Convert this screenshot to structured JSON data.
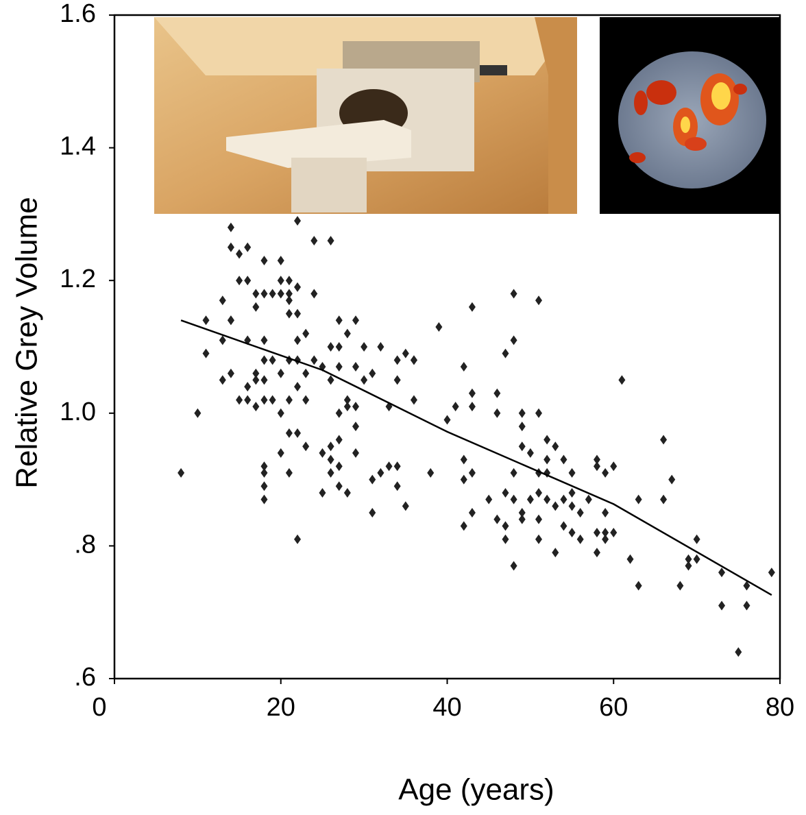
{
  "chart_data": {
    "type": "scatter",
    "x_label": "Age (years)",
    "y_label": "Relative Grey Volume",
    "xlim": [
      0,
      80
    ],
    "xticks": [
      0,
      20,
      40,
      60,
      80
    ],
    "ylim": [
      0.6,
      1.6
    ],
    "yticks": [
      {
        "value": 0.6,
        "label": ".6"
      },
      {
        "value": 0.8,
        "label": ".8"
      },
      {
        "value": 1.0,
        "label": "1.0"
      },
      1.2,
      1.4,
      1.6
    ],
    "series": [
      {
        "type": "scatter",
        "color": "#222222",
        "x": [
          8,
          10,
          11,
          11,
          13,
          13,
          13,
          14,
          14,
          14,
          14,
          14,
          15,
          15,
          15,
          16,
          16,
          16,
          16,
          16,
          17,
          17,
          17,
          17,
          17,
          18,
          18,
          18,
          18,
          18,
          18,
          18,
          18,
          18,
          18,
          19,
          19,
          19,
          20,
          20,
          20,
          20,
          20,
          20,
          21,
          21,
          21,
          21,
          21,
          21,
          21,
          21,
          22,
          22,
          22,
          22,
          22,
          22,
          22,
          22,
          23,
          23,
          23,
          23,
          24,
          24,
          24,
          25,
          25,
          25,
          26,
          26,
          26,
          26,
          26,
          26,
          27,
          27,
          27,
          27,
          27,
          27,
          27,
          28,
          28,
          28,
          28,
          29,
          29,
          29,
          29,
          29,
          30,
          30,
          31,
          31,
          31,
          32,
          32,
          33,
          33,
          34,
          34,
          34,
          34,
          35,
          35,
          36,
          36,
          36,
          38,
          39,
          40,
          41,
          42,
          42,
          42,
          42,
          43,
          43,
          43,
          43,
          43,
          45,
          46,
          46,
          46,
          47,
          47,
          47,
          47,
          48,
          48,
          48,
          48,
          48,
          49,
          49,
          49,
          49,
          49,
          50,
          50,
          51,
          51,
          51,
          51,
          51,
          51,
          52,
          52,
          52,
          52,
          53,
          53,
          53,
          54,
          54,
          54,
          55,
          55,
          55,
          55,
          56,
          56,
          57,
          58,
          58,
          58,
          58,
          59,
          59,
          59,
          59,
          60,
          60,
          61,
          62,
          63,
          63,
          66,
          66,
          67,
          68,
          69,
          69,
          70,
          70,
          73,
          73,
          76,
          76,
          75,
          79
        ],
        "values": [
          0.91,
          1.0,
          1.09,
          1.14,
          1.17,
          1.05,
          1.11,
          1.28,
          1.25,
          1.14,
          1.14,
          1.06,
          1.2,
          1.24,
          1.02,
          1.25,
          1.2,
          1.11,
          1.04,
          1.02,
          1.18,
          1.16,
          1.06,
          1.01,
          1.05,
          1.23,
          1.18,
          1.11,
          1.08,
          1.05,
          1.02,
          0.92,
          0.91,
          0.89,
          0.87,
          1.18,
          1.08,
          1.02,
          1.23,
          1.2,
          1.18,
          1.06,
          1.0,
          0.94,
          1.2,
          1.18,
          1.17,
          1.15,
          1.08,
          1.02,
          0.97,
          0.91,
          1.29,
          1.19,
          1.15,
          1.11,
          1.08,
          1.04,
          0.97,
          0.81,
          1.12,
          1.06,
          1.02,
          0.95,
          1.26,
          1.18,
          1.08,
          1.07,
          0.94,
          0.88,
          1.26,
          1.1,
          1.05,
          0.95,
          0.93,
          0.91,
          1.14,
          1.1,
          1.07,
          1.0,
          0.96,
          0.92,
          0.89,
          1.12,
          1.02,
          1.01,
          0.88,
          1.14,
          1.07,
          1.01,
          0.98,
          0.94,
          1.1,
          1.05,
          1.06,
          0.9,
          0.85,
          1.1,
          0.91,
          1.01,
          0.92,
          1.08,
          1.05,
          0.92,
          0.89,
          1.09,
          0.86,
          1.08,
          1.08,
          1.02,
          0.91,
          1.13,
          0.99,
          1.01,
          1.07,
          0.93,
          0.9,
          0.83,
          1.16,
          1.03,
          1.01,
          0.91,
          0.85,
          0.87,
          1.03,
          1.0,
          0.84,
          1.09,
          0.88,
          0.83,
          0.81,
          1.18,
          1.11,
          0.91,
          0.87,
          0.77,
          1.0,
          0.98,
          0.95,
          0.85,
          0.84,
          0.94,
          0.87,
          1.17,
          1.0,
          0.91,
          0.88,
          0.84,
          0.81,
          0.96,
          0.93,
          0.91,
          0.87,
          0.95,
          0.86,
          0.79,
          0.93,
          0.87,
          0.83,
          0.91,
          0.88,
          0.86,
          0.82,
          0.85,
          0.81,
          0.87,
          0.93,
          0.92,
          0.82,
          0.79,
          0.91,
          0.85,
          0.82,
          0.81,
          0.92,
          0.82,
          1.05,
          0.78,
          0.87,
          0.74,
          0.96,
          0.87,
          0.9,
          0.74,
          0.78,
          0.77,
          0.81,
          0.78,
          0.76,
          0.71,
          0.74,
          0.71,
          0.64,
          0.76
        ]
      },
      {
        "type": "line",
        "color": "#000000",
        "x": [
          8,
          25,
          40,
          60,
          79
        ],
        "values": [
          1.14,
          1.065,
          0.972,
          0.863,
          0.726
        ]
      }
    ]
  }
}
